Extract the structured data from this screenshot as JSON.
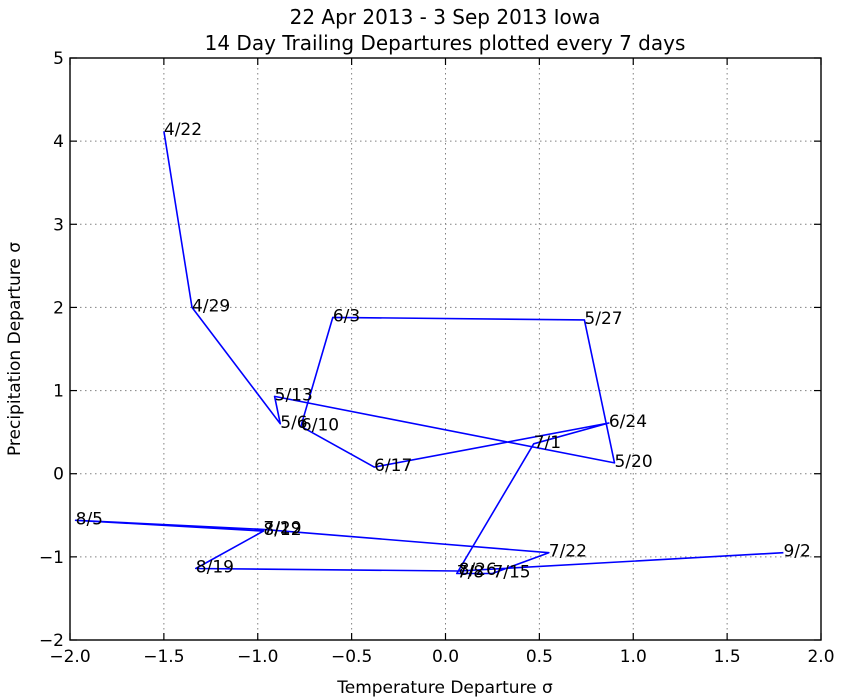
{
  "chart_data": {
    "type": "line",
    "title_line1": "22 Apr 2013 - 3 Sep 2013 Iowa",
    "title_line2": "14 Day Trailing Departures plotted every 7 days",
    "xlabel": "Temperature Departure σ",
    "ylabel": "Precipitation Departure σ",
    "xlim": [
      -2.0,
      2.0
    ],
    "ylim": [
      -2,
      5
    ],
    "xticks": [
      "−2.0",
      "−1.5",
      "−1.0",
      "−0.5",
      "0.0",
      "0.5",
      "1.0",
      "1.5",
      "2.0"
    ],
    "xtick_values": [
      -2.0,
      -1.5,
      -1.0,
      -0.5,
      0.0,
      0.5,
      1.0,
      1.5,
      2.0
    ],
    "yticks": [
      "−2",
      "−1",
      "0",
      "1",
      "2",
      "3",
      "4",
      "5"
    ],
    "ytick_values": [
      -2,
      -1,
      0,
      1,
      2,
      3,
      4,
      5
    ],
    "grid": true,
    "line_color": "#0000ff",
    "points": [
      {
        "label": "4/22",
        "x": -1.5,
        "y": 4.12
      },
      {
        "label": "4/29",
        "x": -1.35,
        "y": 2.0
      },
      {
        "label": "5/6",
        "x": -0.88,
        "y": 0.6
      },
      {
        "label": "5/13",
        "x": -0.91,
        "y": 0.93
      },
      {
        "label": "5/20",
        "x": 0.9,
        "y": 0.13
      },
      {
        "label": "5/27",
        "x": 0.74,
        "y": 1.85
      },
      {
        "label": "6/3",
        "x": -0.6,
        "y": 1.88
      },
      {
        "label": "6/10",
        "x": -0.77,
        "y": 0.57
      },
      {
        "label": "6/17",
        "x": -0.38,
        "y": 0.08
      },
      {
        "label": "6/24",
        "x": 0.87,
        "y": 0.61
      },
      {
        "label": "7/1",
        "x": 0.47,
        "y": 0.36
      },
      {
        "label": "7/8",
        "x": 0.06,
        "y": -1.2
      },
      {
        "label": "7/15",
        "x": 0.25,
        "y": -1.2
      },
      {
        "label": "7/22",
        "x": 0.55,
        "y": -0.95
      },
      {
        "label": "7/29",
        "x": -0.97,
        "y": -0.67
      },
      {
        "label": "8/5",
        "x": -1.97,
        "y": -0.56
      },
      {
        "label": "8/12",
        "x": -0.97,
        "y": -0.69
      },
      {
        "label": "8/19",
        "x": -1.33,
        "y": -1.14
      },
      {
        "label": "8/26",
        "x": 0.07,
        "y": -1.17
      },
      {
        "label": "9/2",
        "x": 1.8,
        "y": -0.95
      }
    ]
  }
}
